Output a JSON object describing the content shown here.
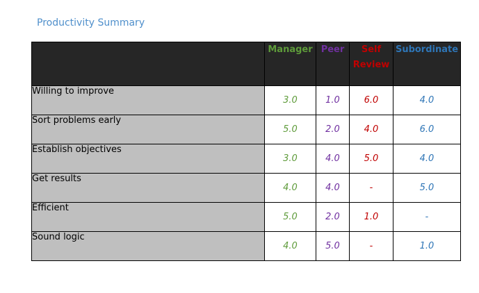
{
  "title": "Productivity Summary",
  "colors": {
    "manager": "#5E9B3A",
    "peer": "#7030A0",
    "self_review": "#C00000",
    "subordinate": "#2E75B6",
    "title": "#4F8FCB",
    "header_bg": "#262626",
    "label_bg": "#BFBFBF"
  },
  "table": {
    "headers": {
      "manager": "Manager",
      "peer": "Peer",
      "self_line1": "Self",
      "self_line2": "Review",
      "subordinate": "Subordinate"
    },
    "rows": [
      {
        "label": "Willing to improve",
        "manager": "3.0",
        "peer": "1.0",
        "self": "6.0",
        "subordinate": "4.0"
      },
      {
        "label": "Sort problems early",
        "manager": "5.0",
        "peer": "2.0",
        "self": "4.0",
        "subordinate": "6.0"
      },
      {
        "label": "Establish objectives",
        "manager": "3.0",
        "peer": "4.0",
        "self": "5.0",
        "subordinate": "4.0"
      },
      {
        "label": "Get results",
        "manager": "4.0",
        "peer": "4.0",
        "self": "-",
        "subordinate": "5.0"
      },
      {
        "label": "Efficient",
        "manager": "5.0",
        "peer": "2.0",
        "self": "1.0",
        "subordinate": "-"
      },
      {
        "label": "Sound logic",
        "manager": "4.0",
        "peer": "5.0",
        "self": "-",
        "subordinate": "1.0"
      }
    ]
  }
}
